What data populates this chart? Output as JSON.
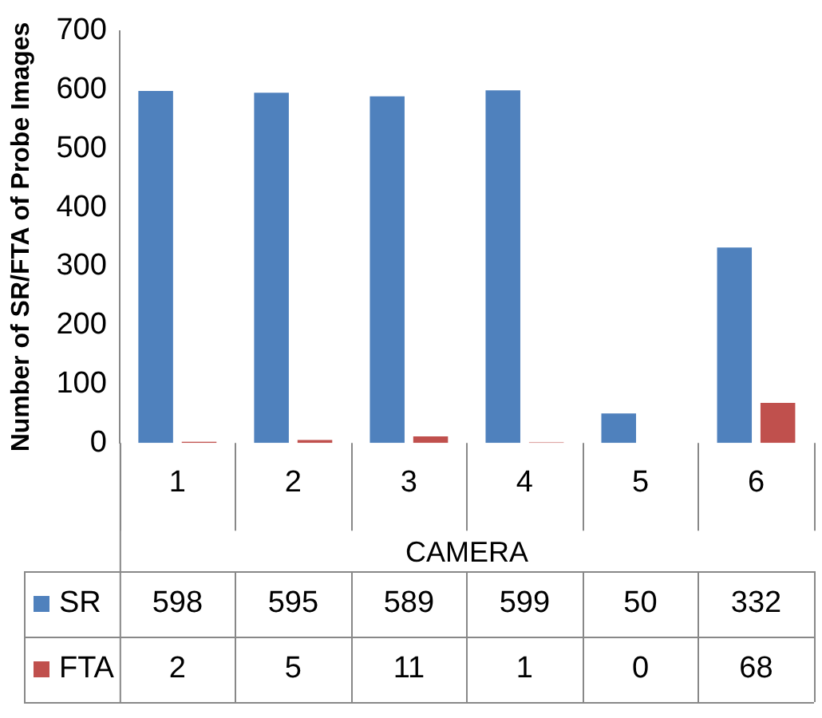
{
  "chart_data": {
    "type": "bar",
    "ylabel": "Number of SR/FTA of Probe Images",
    "xlabel": "CAMERA",
    "categories": [
      "1",
      "2",
      "3",
      "4",
      "5",
      "6"
    ],
    "series": [
      {
        "name": "SR",
        "color": "#4f81bd",
        "values": [
          598,
          595,
          589,
          599,
          50,
          332
        ]
      },
      {
        "name": "FTA",
        "color": "#c0504d",
        "values": [
          2,
          5,
          11,
          1,
          0,
          68
        ]
      }
    ],
    "ylim": [
      0,
      700
    ],
    "yticks": [
      0,
      100,
      200,
      300,
      400,
      500,
      600,
      700
    ],
    "grid": false,
    "legend": "bottom left",
    "data_labels": true
  }
}
